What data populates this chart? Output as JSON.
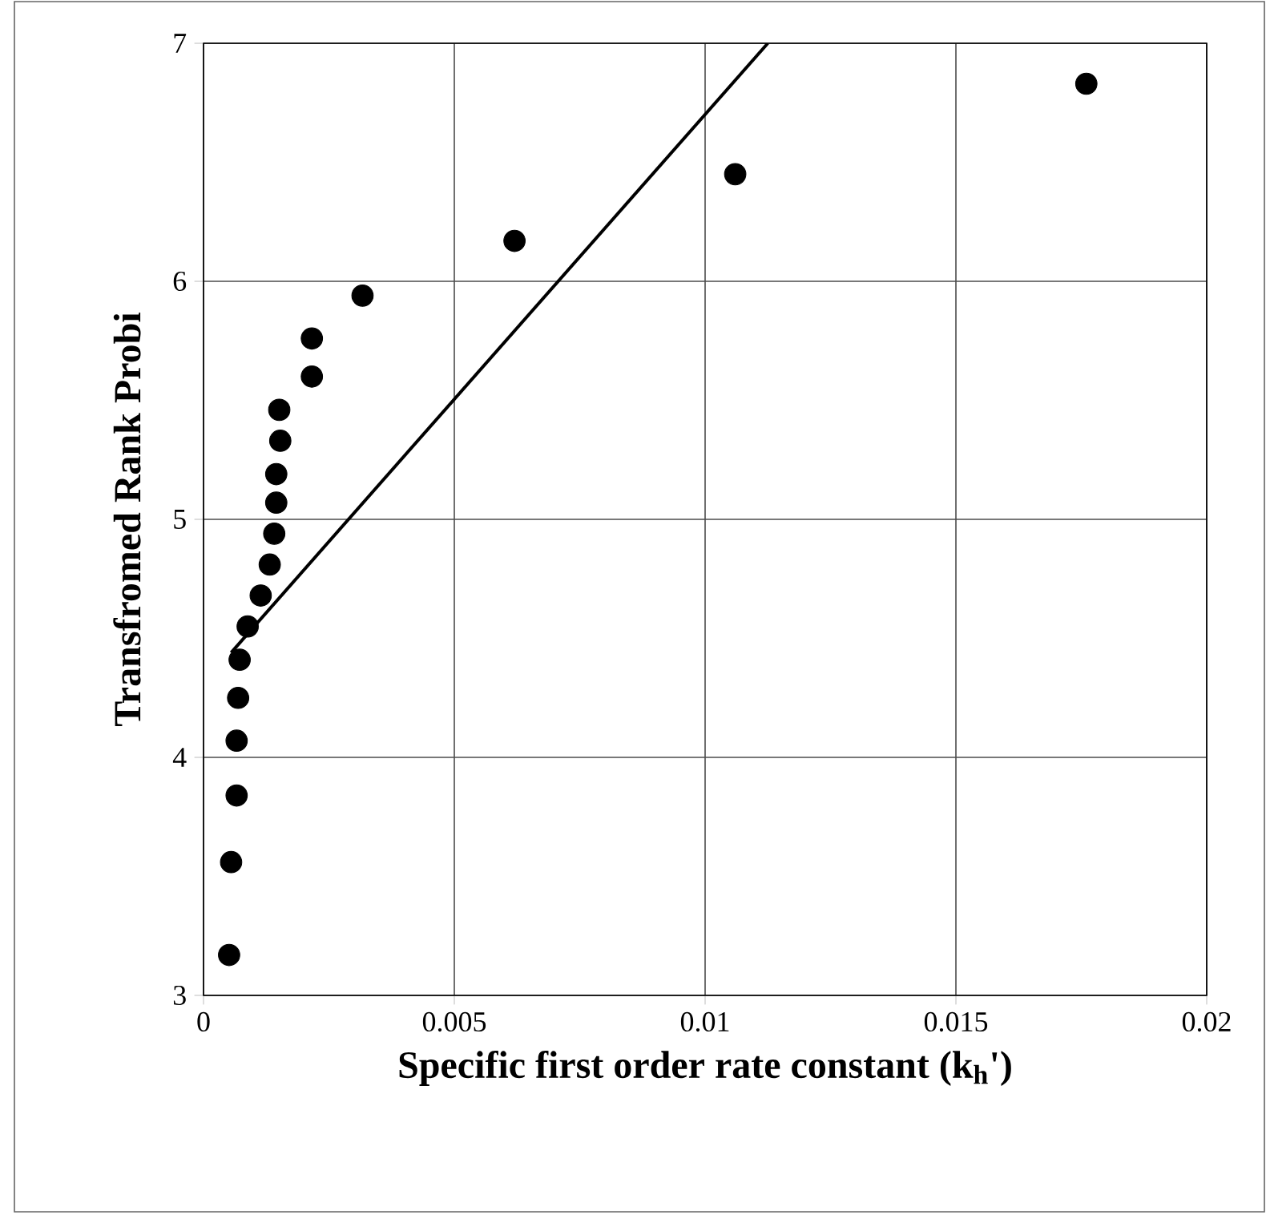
{
  "chart_data": {
    "type": "scatter",
    "xlabel": "Specific first order rate constant (k$_{h}$')",
    "ylabel": "Transfromed Rank Probi",
    "xlim": [
      0,
      0.02
    ],
    "ylim": [
      3,
      7
    ],
    "xticks": [
      0,
      0.005,
      0.01,
      0.015,
      0.02
    ],
    "yticks": [
      3,
      4,
      5,
      6,
      7
    ],
    "grid": true,
    "series": [
      {
        "color": "#000000",
        "marker": "circle",
        "x": [
          0.00051,
          0.00055,
          0.00066,
          0.00066,
          0.00069,
          0.00072,
          0.00088,
          0.00114,
          0.00132,
          0.00141,
          0.00145,
          0.00145,
          0.00153,
          0.00151,
          0.00216,
          0.00216,
          0.00317,
          0.0062,
          0.0106,
          0.0176
        ],
        "values": [
          3.17,
          3.56,
          3.84,
          4.07,
          4.25,
          4.41,
          4.55,
          4.68,
          4.81,
          4.94,
          5.07,
          5.19,
          5.33,
          5.46,
          5.6,
          5.76,
          5.94,
          6.17,
          6.45,
          6.83
        ]
      },
      {
        "type": "line",
        "color": "#000000",
        "marker": "none",
        "line_style": "solid",
        "x": [
          0.00055,
          0.01125
        ],
        "values": [
          4.44,
          7.0
        ]
      }
    ]
  }
}
